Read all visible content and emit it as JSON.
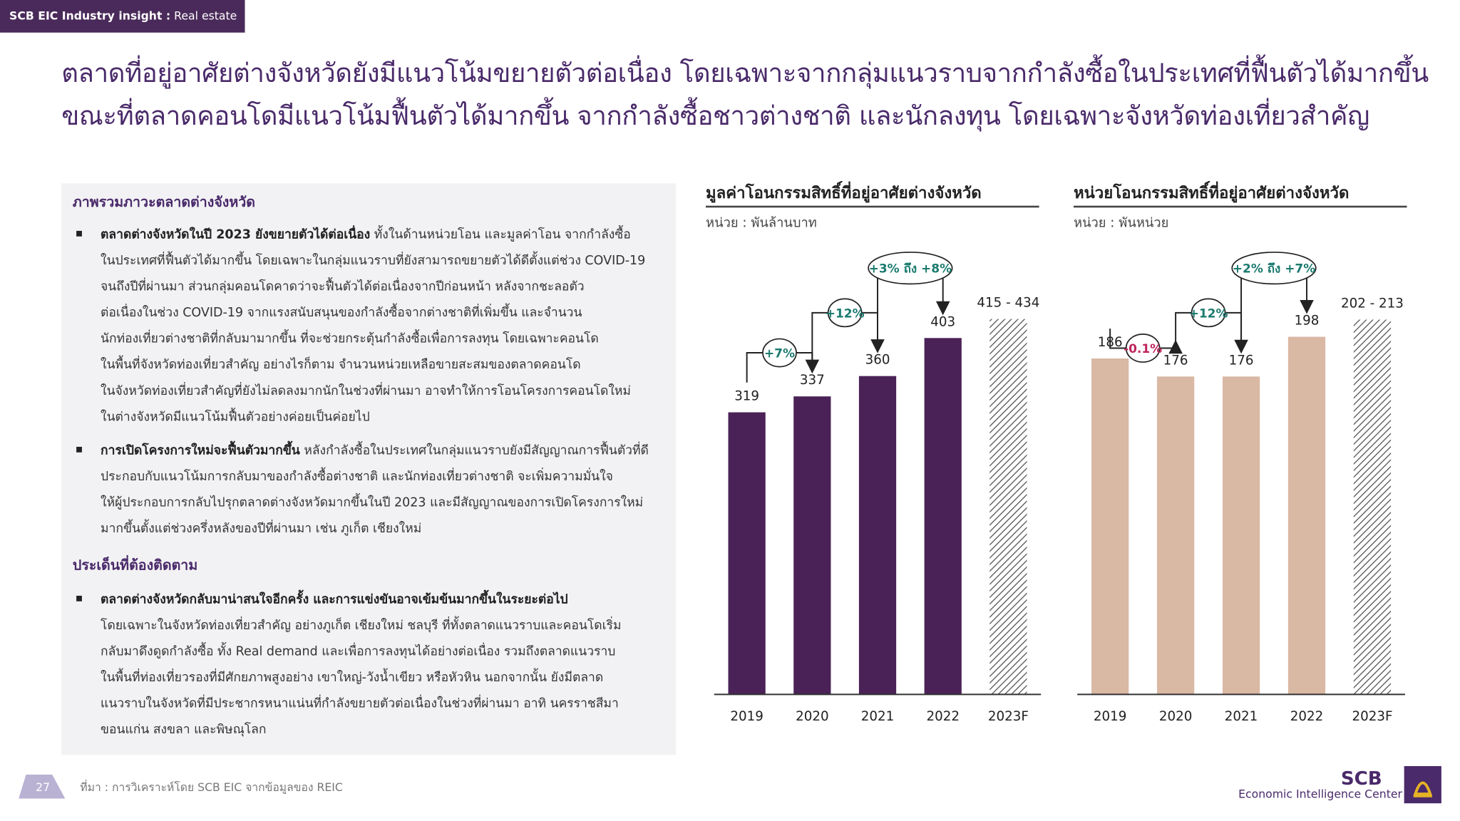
{
  "header": {
    "brand": "SCB EIC Industry insight :",
    "section": "Real estate"
  },
  "headline": "ตลาดที่อยู่อาศัยต่างจังหวัดยังมีแนวโน้มขยายตัวต่อเนื่อง โดยเฉพาะจากกลุ่มแนวราบจากกำลังซื้อในประเทศที่ฟื้นตัวได้มากขึ้น ขณะที่ตลาดคอนโดมีแนวโน้มฟื้นตัวได้มากขึ้น จากกำลังซื้อชาวต่างชาติ และนักลงทุน โดยเฉพาะจังหวัดท่องเที่ยวสำคัญ",
  "left_panel": {
    "overview_heading": "ภาพรวมภาวะตลาดต่างจังหวัด",
    "bullets": [
      {
        "lead": "ตลาดต่างจังหวัดในปี 2023 ยังขยายตัวได้ต่อเนื่อง",
        "lines": [
          " ทั้งในด้านหน่วยโอน และมูลค่าโอน จากกำลังซื้อ",
          "ในประเทศที่ฟื้นตัวได้มากขึ้น โดยเฉพาะในกลุ่มแนวราบที่ยังสามารถขยายตัวได้ดีตั้งแต่ช่วง COVID-19",
          "จนถึงปีที่ผ่านมา ส่วนกลุ่มคอนโดคาดว่าจะฟื้นตัวได้ต่อเนื่องจากปีก่อนหน้า หลังจากชะลอตัว",
          "ต่อเนื่องในช่วง COVID-19 จากแรงสนับสนุนของกำลังซื้อจากต่างชาติที่เพิ่มขึ้น และจำนวน",
          "นักท่องเที่ยวต่างชาติที่กลับมามากขึ้น ที่จะช่วยกระตุ้นกำลังซื้อเพื่อการลงทุน โดยเฉพาะคอนโด",
          "ในพื้นที่จังหวัดท่องเที่ยวสำคัญ อย่างไรก็ตาม จำนวนหน่วยเหลือขายสะสมของตลาดคอนโด",
          "ในจังหวัดท่องเที่ยวสำคัญที่ยังไม่ลดลงมากนักในช่วงที่ผ่านมา อาจทำให้การโอนโครงการคอนโดใหม่",
          "ในต่างจังหวัดมีแนวโน้มฟื้นตัวอย่างค่อยเป็นค่อยไป"
        ]
      },
      {
        "lead": "การเปิดโครงการใหม่จะฟื้นตัวมากขึ้น",
        "lines": [
          " หลังกำลังซื้อในประเทศในกลุ่มแนวราบยังมีสัญญาณการฟื้นตัวที่ดี",
          "ประกอบกับแนวโน้มการกลับมาของกำลังซื้อต่างชาติ และนักท่องเที่ยวต่างชาติ จะเพิ่มความมั่นใจ",
          "ให้ผู้ประกอบการกลับไปรุกตลาดต่างจังหวัดมากขึ้นในปี 2023 และมีสัญญาณของการเปิดโครงการใหม่",
          "มากขึ้นตั้งแต่ช่วงครึ่งหลังของปีที่ผ่านมา เช่น ภูเก็ต เชียงใหม่"
        ]
      }
    ],
    "watch_heading": "ประเด็นที่ต้องติดตาม",
    "watch_bullet": {
      "lead": "ตลาดต่างจังหวัดกลับมาน่าสนใจอีกครั้ง และการแข่งขันอาจเข้มข้นมากขึ้นในระยะต่อไป",
      "lines": [
        "",
        "โดยเฉพาะในจังหวัดท่องเที่ยวสำคัญ อย่างภูเก็ต เชียงใหม่ ชลบุรี ที่ทั้งตลาดแนวราบและคอนโดเริ่ม",
        "กลับมาดึงดูดกำลังซื้อ ทั้ง Real demand และเพื่อการลงทุนได้อย่างต่อเนื่อง รวมถึงตลาดแนวราบ",
        "ในพื้นที่ท่องเที่ยวรองที่มีศักยภาพสูงอย่าง เขาใหญ่-วังน้ำเขียว หรือหัวหิน นอกจากนั้น ยังมีตลาด",
        "แนวราบในจังหวัดที่มีประชากรหนาแน่นที่กำลังขยายตัวต่อเนื่องในช่วงที่ผ่านมา อาทิ นครราชสีมา",
        "ขอนแก่น สงขลา และพิษณุโลก"
      ]
    }
  },
  "chart_data": [
    {
      "type": "bar",
      "title": "มูลค่าโอนกรรมสิทธิ์ที่อยู่อาศัยต่างจังหวัด",
      "unit": "หน่วย : พันล้านบาท",
      "categories": [
        "2019",
        "2020",
        "2021",
        "2022",
        "2023F"
      ],
      "values": [
        319,
        337,
        360,
        403,
        424.5
      ],
      "value_labels": [
        "319",
        "337",
        "360",
        "403",
        "415 - 434"
      ],
      "forecast_index": 4,
      "growth": [
        {
          "from": 1,
          "to": 2,
          "label": "+7%",
          "color": "#1a7a6e"
        },
        {
          "from": 2,
          "to": 3,
          "label": "+12%",
          "color": "#1a7a6e"
        },
        {
          "from": 3,
          "to": 4,
          "label": "+3% ถึง +8%",
          "color": "#1a7a6e"
        }
      ],
      "ylim": [
        0,
        480
      ],
      "bar_color": "#4a2257"
    },
    {
      "type": "bar",
      "title": "หน่วยโอนกรรมสิทธิ์ที่อยู่อาศัยต่างจังหวัด",
      "unit": "หน่วย : พันหน่วย",
      "categories": [
        "2019",
        "2020",
        "2021",
        "2022",
        "2023F"
      ],
      "values": [
        186,
        176,
        176,
        198,
        207.5
      ],
      "value_labels": [
        "186",
        "176",
        "176",
        "198",
        "202 - 213"
      ],
      "forecast_index": 4,
      "growth": [
        {
          "from": 1,
          "to": 2,
          "label": "-0.1%",
          "color": "#c0245c"
        },
        {
          "from": 2,
          "to": 3,
          "label": "+12%",
          "color": "#1a7a6e"
        },
        {
          "from": 3,
          "to": 4,
          "label": "+2% ถึง +7%",
          "color": "#1a7a6e"
        }
      ],
      "ylim": [
        0,
        235
      ],
      "bar_color": "#d9b8a4"
    }
  ],
  "footer": {
    "page_number": "27",
    "source": "ที่มา : การวิเคราะห์โดย SCB EIC จากข้อมูลของ REIC",
    "logo_brand": "SCB",
    "logo_caption": "Economic Intelligence Center"
  }
}
